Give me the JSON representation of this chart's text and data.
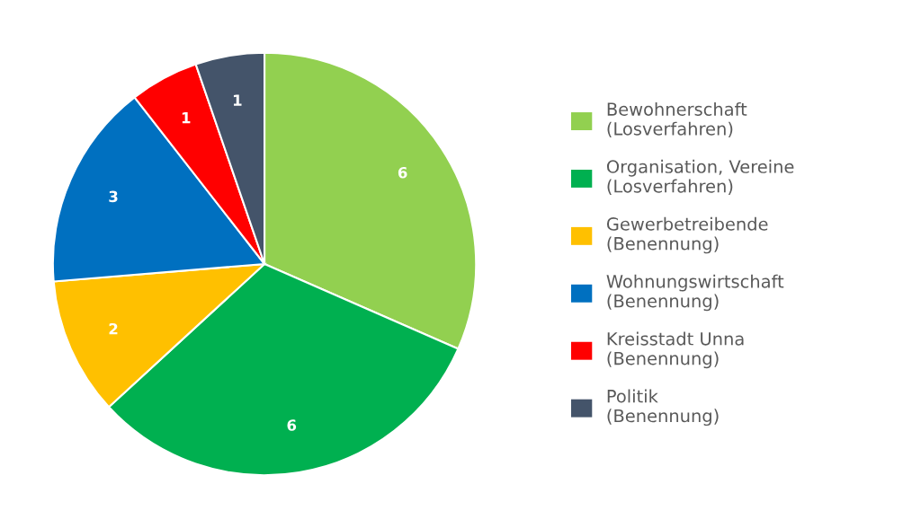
{
  "chart_data": {
    "type": "pie",
    "categories": [
      "Bewohnerschaft\n(Losverfahren)",
      "Organisation, Vereine\n(Losverfahren)",
      "Gewerbetreibende\n(Benennung)",
      "Wohnungswirtschaft\n(Benennung)",
      "Kreisstadt Unna\n(Benennung)",
      "Politik\n(Benennung)"
    ],
    "values": [
      6,
      6,
      2,
      3,
      1,
      1
    ],
    "colors": [
      "#92d050",
      "#00b050",
      "#ffc000",
      "#0070c0",
      "#ff0000",
      "#44546a"
    ],
    "data_labels": true,
    "legend": "right"
  }
}
